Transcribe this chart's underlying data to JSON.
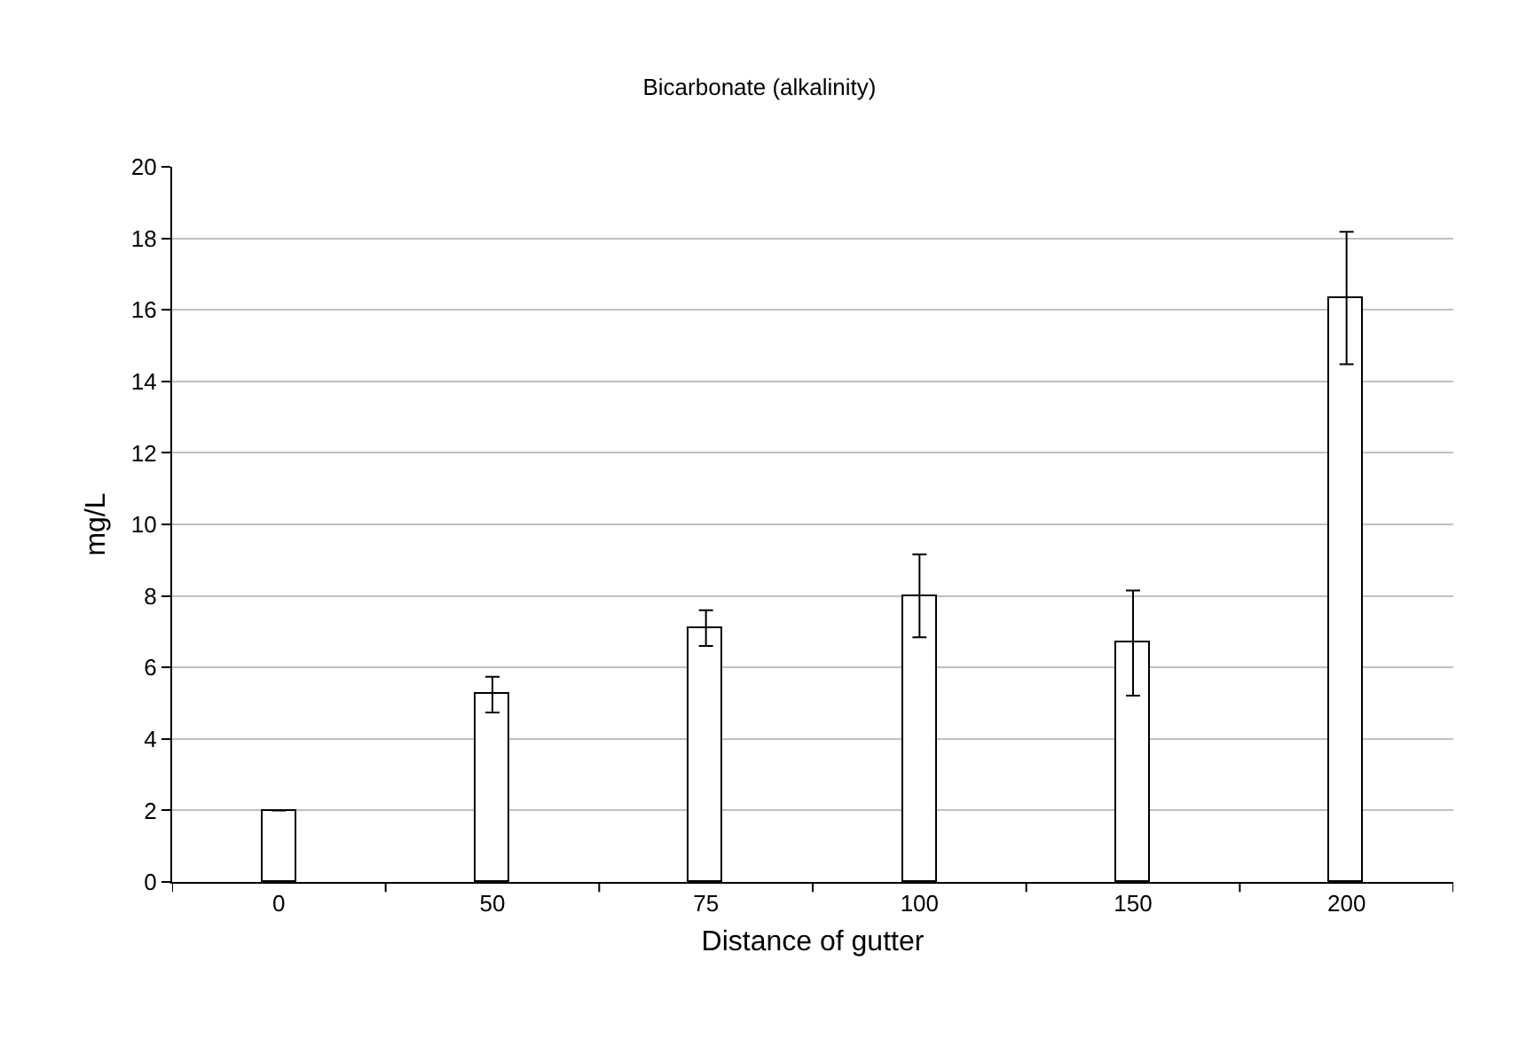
{
  "chart_data": {
    "type": "bar",
    "title": "Bicarbonate (alkalinity)",
    "xlabel": "Distance of gutter",
    "ylabel": "mg/L",
    "categories": [
      "0",
      "50",
      "75",
      "100",
      "150",
      "200"
    ],
    "values": [
      2.0,
      5.24,
      7.1,
      8.0,
      6.68,
      16.33
    ],
    "errors": [
      0,
      0.5,
      0.5,
      1.16,
      1.47,
      1.85
    ],
    "color": "#ffffff",
    "ylim": [
      0,
      20
    ],
    "yticks": [
      0,
      2,
      4,
      6,
      8,
      10,
      12,
      14,
      16,
      18,
      20
    ],
    "grid": "y"
  }
}
